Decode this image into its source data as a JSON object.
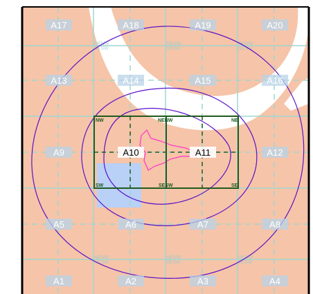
{
  "colors": {
    "land": "#f6c4a8",
    "road": "#ffffff",
    "grid": "#9fd6cf",
    "highlight": "#1f5b1f",
    "contour": "#5a12c8",
    "inner_contour": "#ff33cc",
    "blue_zone": "#b9d0f7",
    "label_bg": "#b9d3e7",
    "frame": "#000000"
  },
  "cells": [
    {
      "id": "A17"
    },
    {
      "id": "A18"
    },
    {
      "id": "A19"
    },
    {
      "id": "A20"
    },
    {
      "id": "A13"
    },
    {
      "id": "A14"
    },
    {
      "id": "A15"
    },
    {
      "id": "A16"
    },
    {
      "id": "A9"
    },
    {
      "id": "A10"
    },
    {
      "id": "A11"
    },
    {
      "id": "A12"
    },
    {
      "id": "A5"
    },
    {
      "id": "A6"
    },
    {
      "id": "A7"
    },
    {
      "id": "A8"
    },
    {
      "id": "A1"
    },
    {
      "id": "A2"
    },
    {
      "id": "A3"
    },
    {
      "id": "A4"
    }
  ],
  "corner_labels": {
    "nw": "NW",
    "ne": "NE",
    "sw": "SW",
    "se": "SE",
    "nenw": "NENW",
    "sesw": "SESW"
  }
}
